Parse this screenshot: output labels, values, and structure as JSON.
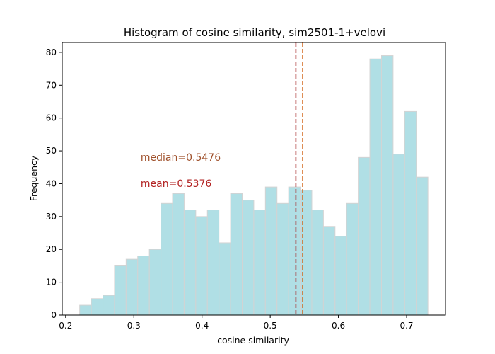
{
  "chart_data": {
    "type": "bar",
    "title": "Histogram of cosine similarity, sim2501-1+velovi",
    "xlabel": "cosine similarity",
    "ylabel": "Frequency",
    "xlim": [
      0.195,
      0.757
    ],
    "ylim": [
      0,
      83
    ],
    "xticks": [
      {
        "value": 0.2,
        "label": "0.2"
      },
      {
        "value": 0.3,
        "label": "0.3"
      },
      {
        "value": 0.4,
        "label": "0.4"
      },
      {
        "value": 0.5,
        "label": "0.5"
      },
      {
        "value": 0.6,
        "label": "0.6"
      },
      {
        "value": 0.7,
        "label": "0.7"
      }
    ],
    "yticks": [
      {
        "value": 0,
        "label": "0"
      },
      {
        "value": 10,
        "label": "10"
      },
      {
        "value": 20,
        "label": "20"
      },
      {
        "value": 30,
        "label": "30"
      },
      {
        "value": 40,
        "label": "40"
      },
      {
        "value": 50,
        "label": "50"
      },
      {
        "value": 60,
        "label": "60"
      },
      {
        "value": 70,
        "label": "70"
      },
      {
        "value": 80,
        "label": "80"
      }
    ],
    "bin_start": 0.2206,
    "bin_width": 0.01702,
    "counts": [
      3,
      5,
      6,
      15,
      17,
      18,
      20,
      34,
      37,
      32,
      30,
      32,
      22,
      37,
      35,
      32,
      39,
      34,
      39,
      38,
      32,
      27,
      24,
      34,
      48,
      78,
      79,
      49,
      62,
      42
    ],
    "bar_color": "#b0dfe5",
    "bar_edge_color": "#d3d3d3",
    "grid": false,
    "lines": [
      {
        "name": "mean",
        "value": 0.5376,
        "color": "#a52a2a"
      },
      {
        "name": "median",
        "value": 0.5476,
        "color": "#d2691e"
      }
    ],
    "annotations": [
      {
        "text": "median=0.5476",
        "x": 0.31,
        "y": 47,
        "color": "#a0522d"
      },
      {
        "text": "mean=0.5376",
        "x": 0.31,
        "y": 39,
        "color": "#b22222"
      }
    ]
  }
}
